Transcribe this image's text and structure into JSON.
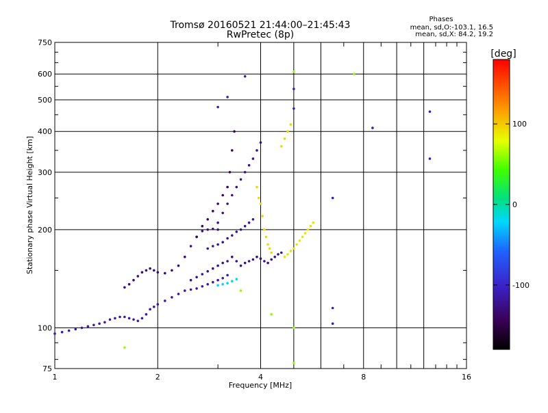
{
  "chart_data": {
    "type": "scatter",
    "title": "Tromsø 20160521 21:44:00–21:45:43",
    "subtitle": "RwPretec (8p)",
    "xlabel": "Frequency [MHz]",
    "ylabel": "Stationary phase Virtual Height [km]",
    "xscale": "log2",
    "yscale": "log",
    "xlim": [
      1,
      16
    ],
    "ylim": [
      75,
      750
    ],
    "x_ticks": [
      1,
      2,
      4,
      8,
      16
    ],
    "x_tick_labels": [
      "1",
      "2",
      "4",
      "8",
      "16"
    ],
    "y_ticks": [
      75,
      100,
      200,
      300,
      400,
      500,
      600,
      750
    ],
    "y_tick_labels": [
      "75",
      "100",
      "200",
      "300",
      "400",
      "500",
      "600",
      "750"
    ],
    "grid": true,
    "stats": {
      "heading": "Phases",
      "line_o": "mean, sd,O:-103.1, 16.5",
      "line_x": "mean, sd,X:  84.2, 19.2"
    },
    "colorbar": {
      "label": "[deg]",
      "range": [
        -180,
        180
      ],
      "ticks": [
        100,
        0,
        -100
      ],
      "tick_labels": [
        "100",
        "0",
        "-100"
      ]
    },
    "series": [
      {
        "phase": -115,
        "points": [
          [
            1.0,
            96
          ],
          [
            1.05,
            97
          ],
          [
            1.1,
            98
          ],
          [
            1.15,
            99
          ],
          [
            1.2,
            100
          ],
          [
            1.25,
            101
          ],
          [
            1.3,
            102
          ],
          [
            1.35,
            103
          ],
          [
            1.4,
            104
          ],
          [
            1.45,
            106
          ],
          [
            1.5,
            107
          ],
          [
            1.55,
            108
          ],
          [
            1.6,
            108
          ],
          [
            1.65,
            107
          ],
          [
            1.7,
            106
          ],
          [
            1.75,
            105
          ],
          [
            1.8,
            107
          ],
          [
            1.85,
            110
          ],
          [
            1.9,
            114
          ],
          [
            1.95,
            116
          ],
          [
            2.0,
            118
          ],
          [
            2.1,
            121
          ],
          [
            2.2,
            124
          ],
          [
            2.3,
            127
          ],
          [
            2.4,
            130
          ],
          [
            2.5,
            131
          ],
          [
            2.6,
            132
          ],
          [
            2.7,
            134
          ],
          [
            2.8,
            136
          ],
          [
            2.9,
            138
          ],
          [
            3.0,
            140
          ],
          [
            3.1,
            142
          ],
          [
            3.2,
            145
          ]
        ]
      },
      {
        "phase": -130,
        "points": [
          [
            1.6,
            133
          ],
          [
            1.65,
            136
          ],
          [
            1.7,
            140
          ],
          [
            1.75,
            144
          ],
          [
            1.8,
            148
          ],
          [
            1.85,
            150
          ],
          [
            1.9,
            152
          ],
          [
            1.95,
            150
          ],
          [
            2.0,
            148
          ],
          [
            2.1,
            147
          ],
          [
            2.2,
            150
          ],
          [
            2.3,
            155
          ],
          [
            2.4,
            165
          ],
          [
            2.5,
            178
          ],
          [
            2.6,
            190
          ],
          [
            2.7,
            198
          ],
          [
            2.8,
            200
          ],
          [
            2.9,
            201
          ],
          [
            3.0,
            200
          ]
        ]
      },
      {
        "phase": -125,
        "points": [
          [
            2.5,
            140
          ],
          [
            2.6,
            143
          ],
          [
            2.7,
            146
          ],
          [
            2.8,
            149
          ],
          [
            2.9,
            152
          ],
          [
            3.0,
            155
          ],
          [
            3.1,
            158
          ],
          [
            3.2,
            160
          ],
          [
            3.3,
            165
          ],
          [
            3.4,
            160
          ],
          [
            3.5,
            155
          ],
          [
            3.6,
            158
          ],
          [
            3.7,
            160
          ],
          [
            3.8,
            162
          ],
          [
            3.9,
            165
          ],
          [
            4.0,
            163
          ],
          [
            4.1,
            160
          ],
          [
            4.2,
            158
          ],
          [
            4.3,
            162
          ],
          [
            4.4,
            165
          ],
          [
            4.5,
            168
          ],
          [
            4.6,
            170
          ]
        ]
      },
      {
        "phase": -120,
        "points": [
          [
            2.8,
            175
          ],
          [
            2.9,
            178
          ],
          [
            3.0,
            180
          ],
          [
            3.1,
            183
          ],
          [
            3.2,
            188
          ],
          [
            3.3,
            192
          ],
          [
            3.4,
            197
          ],
          [
            3.5,
            200
          ],
          [
            3.6,
            205
          ],
          [
            3.7,
            210
          ],
          [
            3.8,
            215
          ]
        ]
      },
      {
        "phase": -125,
        "points": [
          [
            3.0,
            210
          ],
          [
            3.1,
            225
          ],
          [
            3.2,
            240
          ],
          [
            3.3,
            255
          ],
          [
            3.4,
            270
          ],
          [
            3.5,
            285
          ],
          [
            3.6,
            300
          ],
          [
            3.7,
            315
          ],
          [
            3.8,
            330
          ],
          [
            3.9,
            350
          ],
          [
            4.0,
            370
          ]
        ]
      },
      {
        "phase": -140,
        "points": [
          [
            2.6,
            190
          ],
          [
            2.7,
            205
          ],
          [
            2.8,
            215
          ],
          [
            2.9,
            228
          ],
          [
            3.0,
            240
          ],
          [
            3.1,
            255
          ],
          [
            3.2,
            270
          ],
          [
            3.25,
            300
          ],
          [
            3.3,
            350
          ],
          [
            3.35,
            400
          ]
        ]
      },
      {
        "phase": 95,
        "points": [
          [
            3.9,
            270
          ],
          [
            3.95,
            250
          ],
          [
            4.0,
            240
          ],
          [
            4.05,
            220
          ],
          [
            4.1,
            200
          ],
          [
            4.15,
            190
          ],
          [
            4.2,
            180
          ],
          [
            4.25,
            175
          ],
          [
            4.3,
            170
          ]
        ]
      },
      {
        "phase": 95,
        "points": [
          [
            4.6,
            360
          ],
          [
            4.7,
            380
          ],
          [
            4.8,
            400
          ],
          [
            4.9,
            420
          ]
        ]
      },
      {
        "phase": 90,
        "points": [
          [
            4.7,
            165
          ],
          [
            4.8,
            168
          ],
          [
            4.9,
            172
          ],
          [
            5.0,
            175
          ],
          [
            5.1,
            180
          ],
          [
            5.2,
            185
          ],
          [
            5.3,
            190
          ],
          [
            5.4,
            195
          ],
          [
            5.5,
            200
          ],
          [
            5.6,
            205
          ],
          [
            5.7,
            210
          ]
        ]
      },
      {
        "phase": -20,
        "points": [
          [
            3.0,
            135
          ],
          [
            3.1,
            136
          ],
          [
            3.2,
            137
          ],
          [
            3.3,
            139
          ],
          [
            3.4,
            141
          ]
        ]
      },
      {
        "phase": -110,
        "points": [
          [
            3.0,
            475
          ],
          [
            3.2,
            510
          ],
          [
            3.6,
            590
          ],
          [
            5.0,
            540
          ],
          [
            5.0,
            470
          ],
          [
            6.5,
            250
          ],
          [
            6.5,
            115
          ],
          [
            6.5,
            103
          ],
          [
            8.5,
            410
          ],
          [
            12.5,
            460
          ],
          [
            12.5,
            330
          ]
        ]
      },
      {
        "phase": 60,
        "points": [
          [
            1.6,
            87
          ],
          [
            5.0,
            610
          ],
          [
            5.0,
            100
          ],
          [
            5.0,
            78
          ],
          [
            3.5,
            130
          ],
          [
            4.3,
            110
          ],
          [
            7.5,
            600
          ]
        ]
      }
    ]
  }
}
